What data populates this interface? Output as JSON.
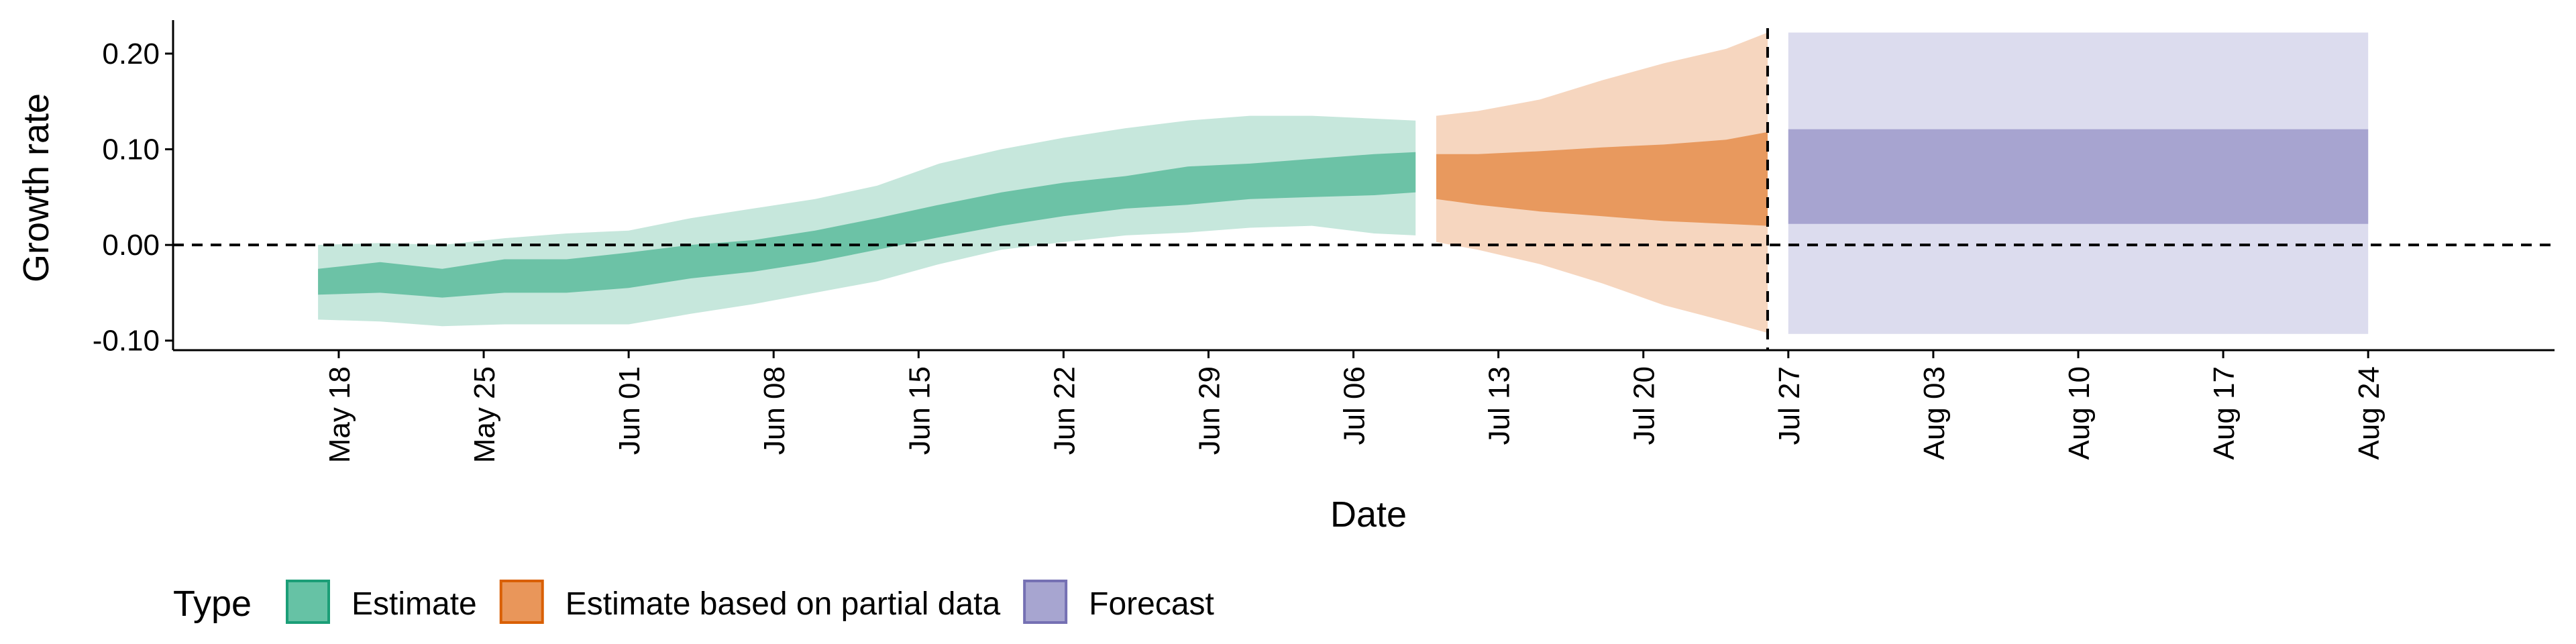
{
  "chart_data": {
    "type": "area",
    "xlabel": "Date",
    "ylabel": "Growth rate",
    "x_axis": {
      "type": "date",
      "range": [
        "2020-05-10",
        "2020-09-02"
      ],
      "ticks": [
        {
          "date": "2020-05-18",
          "label": "May 18"
        },
        {
          "date": "2020-05-25",
          "label": "May 25"
        },
        {
          "date": "2020-06-01",
          "label": "Jun 01"
        },
        {
          "date": "2020-06-08",
          "label": "Jun 08"
        },
        {
          "date": "2020-06-15",
          "label": "Jun 15"
        },
        {
          "date": "2020-06-22",
          "label": "Jun 22"
        },
        {
          "date": "2020-06-29",
          "label": "Jun 29"
        },
        {
          "date": "2020-07-06",
          "label": "Jul 06"
        },
        {
          "date": "2020-07-13",
          "label": "Jul 13"
        },
        {
          "date": "2020-07-20",
          "label": "Jul 20"
        },
        {
          "date": "2020-07-27",
          "label": "Jul 27"
        },
        {
          "date": "2020-08-03",
          "label": "Aug 03"
        },
        {
          "date": "2020-08-10",
          "label": "Aug 10"
        },
        {
          "date": "2020-08-17",
          "label": "Aug 17"
        },
        {
          "date": "2020-08-24",
          "label": "Aug 24"
        }
      ]
    },
    "y_axis": {
      "range": [
        -0.11,
        0.235
      ],
      "ticks": [
        {
          "value": -0.1,
          "label": "-0.10"
        },
        {
          "value": 0.0,
          "label": "0.00"
        },
        {
          "value": 0.1,
          "label": "0.10"
        },
        {
          "value": 0.2,
          "label": "0.20"
        }
      ]
    },
    "reference_lines": [
      {
        "axis": "y",
        "value": 0.0,
        "style": "dashed"
      },
      {
        "axis": "x",
        "value": "2020-07-26",
        "style": "dashed"
      }
    ],
    "grid": false,
    "legend": {
      "title": "Type",
      "position": "bottom-left",
      "entries": [
        {
          "label": "Estimate",
          "fill": "#66c2a5",
          "stroke": "#1b9e77"
        },
        {
          "label": "Estimate based on partial data",
          "fill": "#e9965a",
          "stroke": "#d95f02"
        },
        {
          "label": "Forecast",
          "fill": "#a7a5d0",
          "stroke": "#7570b3"
        }
      ]
    },
    "series": [
      {
        "name": "Estimate",
        "colors": {
          "outer": "#c6e7dc",
          "inner": "#6cc2a6"
        },
        "points": [
          {
            "date": "2020-05-17",
            "lo90": -0.078,
            "lo50": -0.052,
            "hi50": -0.025,
            "hi90": 0.0
          },
          {
            "date": "2020-05-20",
            "lo90": -0.08,
            "lo50": -0.05,
            "hi50": -0.018,
            "hi90": 0.002
          },
          {
            "date": "2020-05-23",
            "lo90": -0.085,
            "lo50": -0.055,
            "hi50": -0.025,
            "hi90": 0.0
          },
          {
            "date": "2020-05-26",
            "lo90": -0.083,
            "lo50": -0.05,
            "hi50": -0.015,
            "hi90": 0.007
          },
          {
            "date": "2020-05-29",
            "lo90": -0.083,
            "lo50": -0.05,
            "hi50": -0.015,
            "hi90": 0.012
          },
          {
            "date": "2020-06-01",
            "lo90": -0.083,
            "lo50": -0.045,
            "hi50": -0.008,
            "hi90": 0.015
          },
          {
            "date": "2020-06-04",
            "lo90": -0.072,
            "lo50": -0.035,
            "hi50": 0.0,
            "hi90": 0.028
          },
          {
            "date": "2020-06-07",
            "lo90": -0.062,
            "lo50": -0.028,
            "hi50": 0.005,
            "hi90": 0.038
          },
          {
            "date": "2020-06-10",
            "lo90": -0.05,
            "lo50": -0.018,
            "hi50": 0.015,
            "hi90": 0.048
          },
          {
            "date": "2020-06-13",
            "lo90": -0.038,
            "lo50": -0.005,
            "hi50": 0.028,
            "hi90": 0.062
          },
          {
            "date": "2020-06-16",
            "lo90": -0.02,
            "lo50": 0.008,
            "hi50": 0.042,
            "hi90": 0.085
          },
          {
            "date": "2020-06-19",
            "lo90": -0.005,
            "lo50": 0.02,
            "hi50": 0.055,
            "hi90": 0.1
          },
          {
            "date": "2020-06-22",
            "lo90": 0.003,
            "lo50": 0.03,
            "hi50": 0.065,
            "hi90": 0.112
          },
          {
            "date": "2020-06-25",
            "lo90": 0.01,
            "lo50": 0.038,
            "hi50": 0.072,
            "hi90": 0.122
          },
          {
            "date": "2020-06-28",
            "lo90": 0.013,
            "lo50": 0.042,
            "hi50": 0.082,
            "hi90": 0.13
          },
          {
            "date": "2020-07-01",
            "lo90": 0.018,
            "lo50": 0.048,
            "hi50": 0.085,
            "hi90": 0.135
          },
          {
            "date": "2020-07-04",
            "lo90": 0.02,
            "lo50": 0.05,
            "hi50": 0.09,
            "hi90": 0.135
          },
          {
            "date": "2020-07-07",
            "lo90": 0.012,
            "lo50": 0.052,
            "hi50": 0.095,
            "hi90": 0.132
          },
          {
            "date": "2020-07-09",
            "lo90": 0.01,
            "lo50": 0.055,
            "hi50": 0.097,
            "hi90": 0.13
          }
        ]
      },
      {
        "name": "Estimate based on partial data",
        "colors": {
          "outer": "#f6d6bf",
          "inner": "#e8995e"
        },
        "points": [
          {
            "date": "2020-07-10",
            "lo90": 0.003,
            "lo50": 0.048,
            "hi50": 0.095,
            "hi90": 0.135
          },
          {
            "date": "2020-07-12",
            "lo90": -0.005,
            "lo50": 0.042,
            "hi50": 0.095,
            "hi90": 0.14
          },
          {
            "date": "2020-07-15",
            "lo90": -0.02,
            "lo50": 0.035,
            "hi50": 0.098,
            "hi90": 0.152
          },
          {
            "date": "2020-07-18",
            "lo90": -0.04,
            "lo50": 0.03,
            "hi50": 0.102,
            "hi90": 0.172
          },
          {
            "date": "2020-07-21",
            "lo90": -0.063,
            "lo50": 0.025,
            "hi50": 0.105,
            "hi90": 0.19
          },
          {
            "date": "2020-07-24",
            "lo90": -0.08,
            "lo50": 0.022,
            "hi50": 0.11,
            "hi90": 0.205
          },
          {
            "date": "2020-07-26",
            "lo90": -0.092,
            "lo50": 0.02,
            "hi50": 0.118,
            "hi90": 0.222
          }
        ]
      },
      {
        "name": "Forecast",
        "colors": {
          "outer": "#dcdcee",
          "inner": "#a7a4d0"
        },
        "points": [
          {
            "date": "2020-07-27",
            "lo90": -0.093,
            "lo50": 0.022,
            "hi50": 0.121,
            "hi90": 0.222
          },
          {
            "date": "2020-08-24",
            "lo90": -0.093,
            "lo50": 0.022,
            "hi50": 0.121,
            "hi90": 0.222
          }
        ]
      }
    ]
  }
}
